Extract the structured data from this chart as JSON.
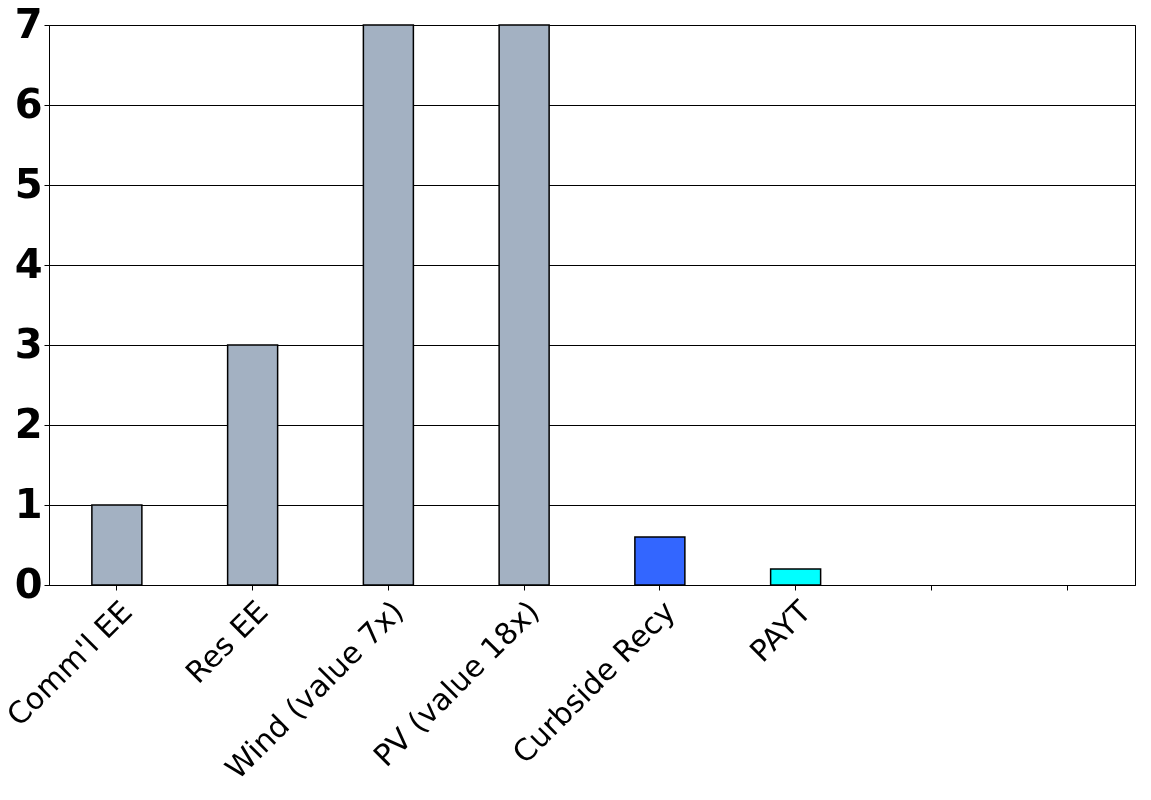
{
  "chart_data": {
    "type": "bar",
    "categories": [
      "Comm'l EE",
      "Res EE",
      "Wind (value 7x)",
      "PV  (value 18x)",
      "Curbside Recy",
      "PAYT",
      null,
      null
    ],
    "values": [
      1,
      3,
      7,
      7,
      0.6,
      0.2,
      null,
      null
    ],
    "colors": [
      "#a3b1c2",
      "#a3b1c2",
      "#a3b1c2",
      "#a3b1c2",
      "#3366ff",
      "#00ffff",
      "#a3b1c2",
      "#a3b1c2"
    ],
    "ylim": [
      0,
      7
    ],
    "yticks": [
      0,
      1,
      2,
      3,
      4,
      5,
      6,
      7
    ],
    "grid": "y"
  }
}
